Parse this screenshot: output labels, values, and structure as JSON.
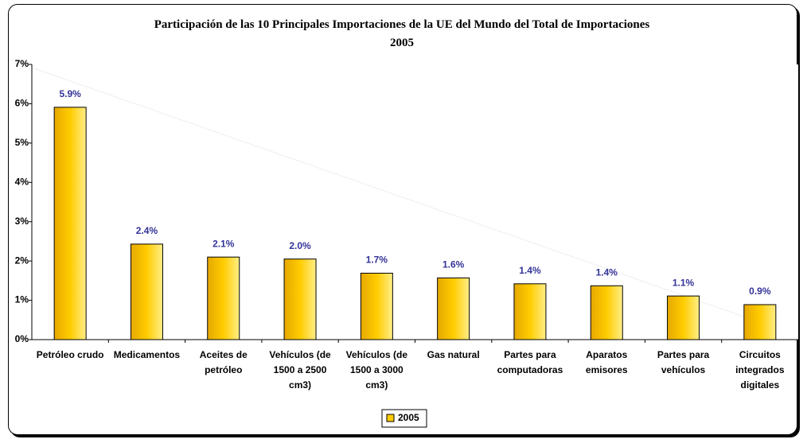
{
  "chart_data": {
    "type": "bar",
    "title": "Participación de las 10 Principales Importaciones de la UE del Mundo del Total de Importaciones",
    "subtitle": "2005",
    "categories": [
      "Petróleo crudo",
      "Medicamentos",
      "Aceites de petróleo",
      "Vehículos (de 1500 a 2500 cm3)",
      "Vehículos (de 1500 a 3000 cm3)",
      "Gas natural",
      "Partes para computadoras",
      "Aparatos emisores",
      "Partes para vehículos",
      "Circuitos integrados digitales"
    ],
    "series": [
      {
        "name": "2005",
        "color": "#ffcc00",
        "values": [
          5.91,
          2.43,
          2.1,
          2.05,
          1.69,
          1.57,
          1.42,
          1.37,
          1.11,
          0.89
        ],
        "value_labels": [
          "5.9%",
          "2.4%",
          "2.1%",
          "2.0%",
          "1.7%",
          "1.6%",
          "1.4%",
          "1.4%",
          "1.1%",
          "0.9%"
        ]
      }
    ],
    "ylim": [
      0,
      7
    ],
    "yticks": [
      {
        "value": 0,
        "label": "0%"
      },
      {
        "value": 1,
        "label": "1%"
      },
      {
        "value": 2,
        "label": "2%"
      },
      {
        "value": 3,
        "label": "3%"
      },
      {
        "value": 4,
        "label": "4%"
      },
      {
        "value": 5,
        "label": "5%"
      },
      {
        "value": 6,
        "label": "6%"
      },
      {
        "value": 7,
        "label": "7%"
      }
    ],
    "legend": "bottom"
  }
}
